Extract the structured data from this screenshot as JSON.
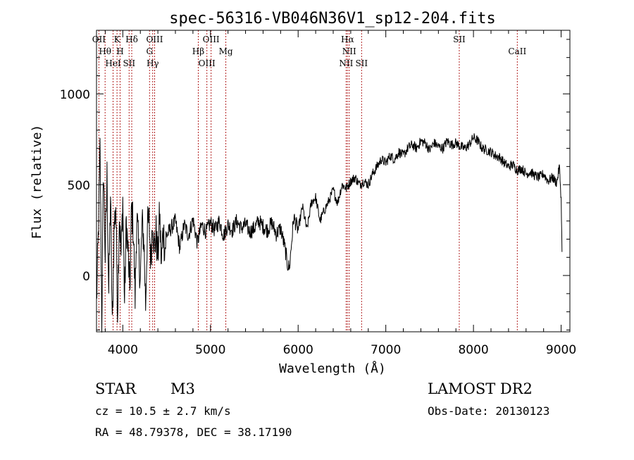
{
  "chart_data": {
    "type": "line",
    "title": "spec-56316-VB046N36V1_sp12-204.fits",
    "xlabel": "Wavelength (Å)",
    "ylabel": "Flux (relative)",
    "xlim": [
      3700,
      9100
    ],
    "ylim": [
      -310,
      1350
    ],
    "xticks": [
      4000,
      5000,
      6000,
      7000,
      8000,
      9000
    ],
    "yticks": [
      0,
      500,
      1000
    ],
    "line_color": "#000000",
    "marker_color": "#b22222",
    "series": [
      {
        "values_x": [
          3700,
          3720,
          3740,
          3760,
          3780,
          3800,
          3820,
          3840,
          3860,
          3880,
          3900,
          3920,
          3940,
          3960,
          3980,
          4000,
          4020,
          4040,
          4060,
          4080,
          4100,
          4120,
          4140,
          4160,
          4180,
          4200,
          4220,
          4240,
          4260,
          4280,
          4300,
          4320,
          4340,
          4360,
          4380,
          4400,
          4420,
          4440,
          4460,
          4480,
          4500,
          4550,
          4600,
          4650,
          4700,
          4750,
          4800,
          4850,
          4900,
          4950,
          5000,
          5050,
          5100,
          5150,
          5200,
          5250,
          5300,
          5350,
          5400,
          5450,
          5500,
          5550,
          5600,
          5650,
          5700,
          5750,
          5800,
          5850,
          5880,
          5900,
          5920,
          5950,
          6000,
          6050,
          6100,
          6150,
          6200,
          6250,
          6300,
          6350,
          6400,
          6450,
          6500,
          6550,
          6600,
          6650,
          6700,
          6750,
          6800,
          6850,
          6900,
          6950,
          7000,
          7050,
          7100,
          7150,
          7200,
          7250,
          7300,
          7350,
          7400,
          7450,
          7500,
          7550,
          7600,
          7650,
          7700,
          7750,
          7800,
          7850,
          7900,
          7950,
          8000,
          8050,
          8100,
          8150,
          8200,
          8250,
          8300,
          8350,
          8400,
          8450,
          8500,
          8550,
          8600,
          8650,
          8700,
          8750,
          8800,
          8850,
          8900,
          8950,
          8980,
          9000,
          9010
        ],
        "values_y": [
          -150,
          200,
          700,
          -250,
          600,
          100,
          550,
          -100,
          450,
          -300,
          250,
          400,
          -200,
          350,
          100,
          420,
          -150,
          300,
          120,
          -80,
          380,
          250,
          -120,
          330,
          150,
          -20,
          280,
          200,
          -160,
          260,
          300,
          80,
          320,
          140,
          230,
          100,
          340,
          60,
          260,
          150,
          220,
          260,
          300,
          150,
          280,
          220,
          310,
          180,
          280,
          240,
          290,
          250,
          300,
          220,
          280,
          250,
          300,
          260,
          280,
          240,
          260,
          300,
          270,
          250,
          290,
          230,
          260,
          150,
          60,
          40,
          150,
          320,
          250,
          380,
          250,
          400,
          430,
          300,
          360,
          410,
          470,
          400,
          500,
          480,
          520,
          540,
          500,
          520,
          500,
          560,
          600,
          640,
          620,
          660,
          640,
          680,
          660,
          700,
          720,
          700,
          740,
          730,
          690,
          730,
          710,
          700,
          740,
          720,
          730,
          710,
          700,
          720,
          760,
          740,
          700,
          690,
          680,
          660,
          650,
          620,
          600,
          610,
          580,
          590,
          560,
          570,
          550,
          540,
          560,
          520,
          540,
          510,
          600,
          420,
          130
        ]
      }
    ],
    "reference_lines": [
      {
        "label": "OII",
        "x": 3727
      },
      {
        "label": "Hθ",
        "x": 3798
      },
      {
        "label": "HeI",
        "x": 3889
      },
      {
        "label": "K",
        "x": 3934
      },
      {
        "label": "H",
        "x": 3969
      },
      {
        "label": "SII",
        "x": 4072
      },
      {
        "label": "Hδ",
        "x": 4102
      },
      {
        "label": "G",
        "x": 4305
      },
      {
        "label": "Hγ",
        "x": 4341
      },
      {
        "label": "OIII",
        "x": 4363
      },
      {
        "label": "Hβ",
        "x": 4861
      },
      {
        "label": "OIII",
        "x": 4959
      },
      {
        "label": "OIII",
        "x": 5007
      },
      {
        "label": "Mg",
        "x": 5175
      },
      {
        "label": "NII",
        "x": 6548
      },
      {
        "label": "Hα",
        "x": 6563
      },
      {
        "label": "NII",
        "x": 6583
      },
      {
        "label": "SII",
        "x": 6724
      },
      {
        "label": "SII",
        "x": 7838
      },
      {
        "label": "CaII",
        "x": 8500
      }
    ]
  },
  "footer": {
    "class_label": "STAR",
    "subclass": "M3",
    "survey": "LAMOST DR2",
    "cz": "cz = 10.5 ± 2.7 km/s",
    "obs_date": "Obs-Date: 20130123",
    "coords": "RA =  48.79378, DEC =  38.17190"
  }
}
